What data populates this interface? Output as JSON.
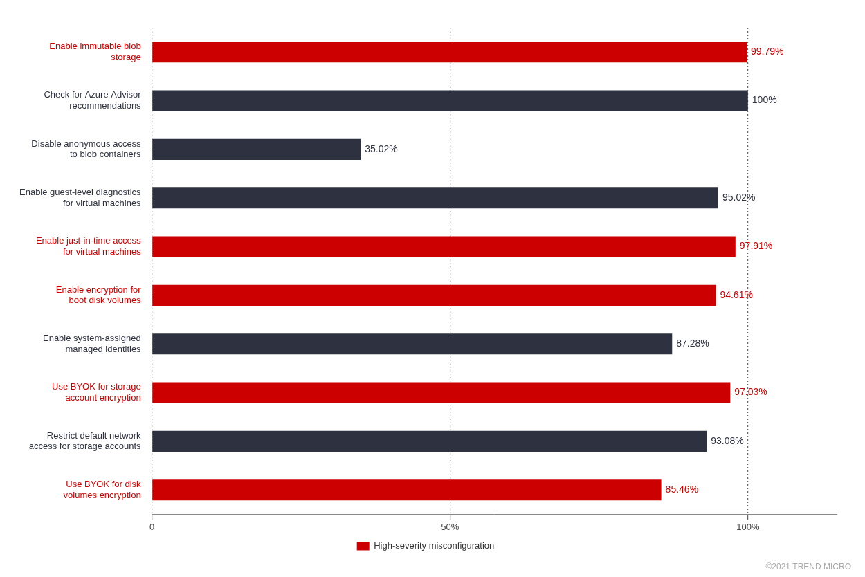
{
  "chart_data": {
    "type": "bar",
    "orientation": "horizontal",
    "categories": [
      "Use BYOK for disk\nvolumes encryption",
      "Restrict default network\naccess for storage accounts",
      "Use BYOK for storage\naccount encryption",
      "Enable system-assigned\nmanaged identities",
      "Enable encryption for\nboot disk volumes",
      "Enable just-in-time access\nfor virtual machines",
      "Enable guest-level diagnostics\nfor virtual machines",
      "Disable anonymous access\nto blob containers",
      "Check for Azure Advisor\nrecommendations",
      "Enable immutable blob\nstorage"
    ],
    "series": [
      {
        "name": "High-severity misconfiguration",
        "color": "#cc0000",
        "values": [
          85.46,
          null,
          97.03,
          null,
          94.61,
          97.91,
          null,
          null,
          null,
          99.79
        ],
        "value_labels": [
          "85.46%",
          null,
          "97.03%",
          null,
          "94.61%",
          "97.91%",
          null,
          null,
          null,
          "99.79%"
        ]
      },
      {
        "color": "#2e3240",
        "values": [
          null,
          93.08,
          null,
          87.28,
          null,
          null,
          95.02,
          35.02,
          100.0,
          null
        ],
        "value_labels": [
          null,
          "93.08%",
          null,
          "87.28%",
          null,
          null,
          "95.02%",
          "35.02%",
          "100%",
          null
        ]
      }
    ],
    "xlim": [
      0,
      115
    ],
    "xticks": [
      0,
      {
        "value": 50,
        "label": "50%"
      },
      {
        "value": 100,
        "label": "100%"
      }
    ],
    "grid": true,
    "legend": "bottom",
    "data_labels": true,
    "annotation": "©2021 TREND MICRO"
  }
}
